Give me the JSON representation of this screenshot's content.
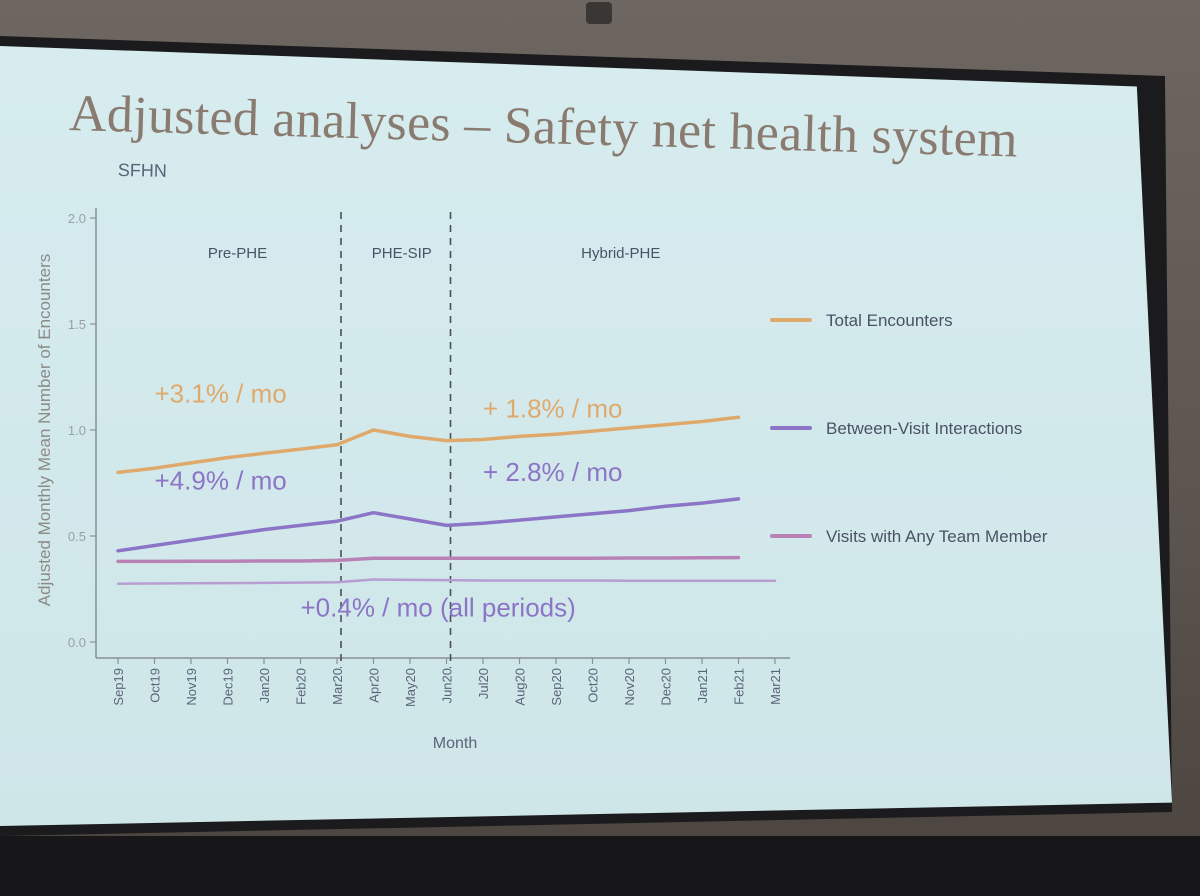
{
  "slide": {
    "title": "Adjusted analyses – Safety net health system",
    "subtitle": "SFHN"
  },
  "chart_data": {
    "type": "line",
    "xlabel": "Month",
    "ylabel": "Adjusted Monthly Mean Number of Encounters",
    "ylim": [
      0,
      2.0
    ],
    "yticks": [
      "0.0",
      "0.5",
      "1.0",
      "1.5",
      "2.0"
    ],
    "categories": [
      "Sep19",
      "Oct19",
      "Nov19",
      "Dec19",
      "Jan20",
      "Feb20",
      "Mar20",
      "Apr20",
      "May20",
      "Jun20",
      "Jul20",
      "Aug20",
      "Sep20",
      "Oct20",
      "Nov20",
      "Dec20",
      "Jan21",
      "Feb21",
      "Mar21"
    ],
    "grid": false,
    "legend_position": "right",
    "periods": [
      {
        "label": "Pre-PHE",
        "start": "Sep19",
        "end": "Mar20"
      },
      {
        "label": "PHE-SIP",
        "start": "Mar20",
        "end": "Jun20"
      },
      {
        "label": "Hybrid-PHE",
        "start": "Jun20",
        "end": "Mar21"
      }
    ],
    "period_breaks": [
      "Mar20",
      "Jun20"
    ],
    "series": [
      {
        "name": "Total Encounters",
        "color": "#e0a96c",
        "values": [
          0.8,
          0.82,
          0.845,
          0.87,
          0.89,
          0.91,
          0.93,
          1.0,
          0.97,
          0.95,
          0.955,
          0.97,
          0.98,
          0.995,
          1.01,
          1.025,
          1.04,
          1.06,
          null
        ]
      },
      {
        "name": "Between-Visit Interactions",
        "color": "#8c74c6",
        "values": [
          0.43,
          0.455,
          0.48,
          0.505,
          0.53,
          0.55,
          0.57,
          0.61,
          0.58,
          0.55,
          0.56,
          0.575,
          0.59,
          0.605,
          0.62,
          0.64,
          0.655,
          0.675,
          null
        ]
      },
      {
        "name": "Visits with Any Team Member",
        "color": "#b882b5",
        "values": [
          0.38,
          0.38,
          0.381,
          0.381,
          0.382,
          0.382,
          0.385,
          0.395,
          0.395,
          0.395,
          0.395,
          0.395,
          0.395,
          0.395,
          0.396,
          0.396,
          0.397,
          0.398,
          null
        ]
      },
      {
        "color": "#b89ed0",
        "values": [
          0.275,
          0.276,
          0.277,
          0.278,
          0.279,
          0.28,
          0.282,
          0.295,
          0.293,
          0.292,
          0.29,
          0.29,
          0.29,
          0.29,
          0.289,
          0.289,
          0.289,
          0.289,
          0.289
        ]
      }
    ],
    "annotations": [
      {
        "text": "+3.1% / mo",
        "color": "#e0a96c",
        "x": "Oct19",
        "y": 1.13
      },
      {
        "text": "+ 1.8% / mo",
        "color": "#e0a96c",
        "x": "Jul20",
        "y": 1.06
      },
      {
        "text": "+4.9% / mo",
        "color": "#8c74c6",
        "x": "Oct19",
        "y": 0.72
      },
      {
        "text": "+ 2.8% / mo",
        "color": "#8c74c6",
        "x": "Jul20",
        "y": 0.76
      },
      {
        "text": "+0.4% / mo (all periods)",
        "color": "#8c74c6",
        "x": "Feb20",
        "y": 0.12
      }
    ]
  }
}
